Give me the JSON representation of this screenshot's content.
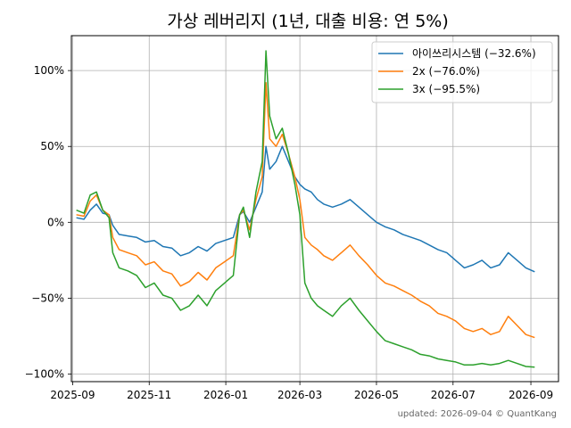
{
  "chart_data": {
    "type": "line",
    "title": "가상 레버리지 (1년, 대출 비용: 연 5%)",
    "footer": "updated: 2026-09-04 © QuantKang",
    "xlabel": "",
    "ylabel": "",
    "xlim": [
      "2025-08-31",
      "2026-09-23"
    ],
    "ylim": [
      -105,
      123
    ],
    "x_ticks": [
      "2025-09",
      "2025-11",
      "2026-01",
      "2026-03",
      "2026-05",
      "2026-07",
      "2026-09"
    ],
    "y_ticks": [
      100,
      50,
      0,
      -50,
      -100
    ],
    "y_tick_labels": [
      "100%",
      "50%",
      "0%",
      "−50%",
      "−100%"
    ],
    "grid": true,
    "legend_position": "top-right",
    "series": [
      {
        "name": "아이쓰리시스템 (−32.6%)",
        "color": "#1f77b4",
        "points": [
          [
            "2025-09-04",
            3
          ],
          [
            "2025-09-10",
            2
          ],
          [
            "2025-09-15",
            8
          ],
          [
            "2025-09-20",
            12
          ],
          [
            "2025-09-25",
            6
          ],
          [
            "2025-09-30",
            5
          ],
          [
            "2025-10-03",
            -2
          ],
          [
            "2025-10-08",
            -8
          ],
          [
            "2025-10-15",
            -9
          ],
          [
            "2025-10-22",
            -10
          ],
          [
            "2025-10-29",
            -13
          ],
          [
            "2025-11-05",
            -12
          ],
          [
            "2025-11-12",
            -16
          ],
          [
            "2025-11-19",
            -17
          ],
          [
            "2025-11-26",
            -22
          ],
          [
            "2025-12-03",
            -20
          ],
          [
            "2025-12-10",
            -16
          ],
          [
            "2025-12-17",
            -19
          ],
          [
            "2025-12-24",
            -14
          ],
          [
            "2025-12-31",
            -12
          ],
          [
            "2026-01-07",
            -10
          ],
          [
            "2026-01-12",
            5
          ],
          [
            "2026-01-15",
            7
          ],
          [
            "2026-01-20",
            0
          ],
          [
            "2026-01-25",
            10
          ],
          [
            "2026-01-30",
            20
          ],
          [
            "2026-02-02",
            50
          ],
          [
            "2026-02-05",
            35
          ],
          [
            "2026-02-10",
            40
          ],
          [
            "2026-02-15",
            50
          ],
          [
            "2026-02-20",
            40
          ],
          [
            "2026-02-25",
            30
          ],
          [
            "2026-03-01",
            25
          ],
          [
            "2026-03-05",
            22
          ],
          [
            "2026-03-10",
            20
          ],
          [
            "2026-03-15",
            15
          ],
          [
            "2026-03-20",
            12
          ],
          [
            "2026-03-27",
            10
          ],
          [
            "2026-04-03",
            12
          ],
          [
            "2026-04-10",
            15
          ],
          [
            "2026-04-17",
            10
          ],
          [
            "2026-04-24",
            5
          ],
          [
            "2026-05-01",
            0
          ],
          [
            "2026-05-08",
            -3
          ],
          [
            "2026-05-15",
            -5
          ],
          [
            "2026-05-22",
            -8
          ],
          [
            "2026-05-29",
            -10
          ],
          [
            "2026-06-05",
            -12
          ],
          [
            "2026-06-12",
            -15
          ],
          [
            "2026-06-19",
            -18
          ],
          [
            "2026-06-26",
            -20
          ],
          [
            "2026-07-03",
            -25
          ],
          [
            "2026-07-10",
            -30
          ],
          [
            "2026-07-17",
            -28
          ],
          [
            "2026-07-24",
            -25
          ],
          [
            "2026-07-31",
            -30
          ],
          [
            "2026-08-07",
            -28
          ],
          [
            "2026-08-14",
            -20
          ],
          [
            "2026-08-21",
            -25
          ],
          [
            "2026-08-28",
            -30
          ],
          [
            "2026-09-04",
            -32.6
          ]
        ]
      },
      {
        "name": "2x (−76.0%)",
        "color": "#ff7f0e",
        "points": [
          [
            "2025-09-04",
            5
          ],
          [
            "2025-09-10",
            4
          ],
          [
            "2025-09-15",
            14
          ],
          [
            "2025-09-20",
            18
          ],
          [
            "2025-09-25",
            8
          ],
          [
            "2025-09-30",
            5
          ],
          [
            "2025-10-03",
            -10
          ],
          [
            "2025-10-08",
            -18
          ],
          [
            "2025-10-15",
            -20
          ],
          [
            "2025-10-22",
            -22
          ],
          [
            "2025-10-29",
            -28
          ],
          [
            "2025-11-05",
            -26
          ],
          [
            "2025-11-12",
            -32
          ],
          [
            "2025-11-19",
            -34
          ],
          [
            "2025-11-26",
            -42
          ],
          [
            "2025-12-03",
            -39
          ],
          [
            "2025-12-10",
            -33
          ],
          [
            "2025-12-17",
            -38
          ],
          [
            "2025-12-24",
            -30
          ],
          [
            "2025-12-31",
            -26
          ],
          [
            "2026-01-07",
            -22
          ],
          [
            "2026-01-12",
            5
          ],
          [
            "2026-01-15",
            8
          ],
          [
            "2026-01-20",
            -5
          ],
          [
            "2026-01-25",
            15
          ],
          [
            "2026-01-30",
            30
          ],
          [
            "2026-02-02",
            92
          ],
          [
            "2026-02-05",
            55
          ],
          [
            "2026-02-10",
            50
          ],
          [
            "2026-02-15",
            58
          ],
          [
            "2026-02-20",
            45
          ],
          [
            "2026-02-25",
            30
          ],
          [
            "2026-03-01",
            15
          ],
          [
            "2026-03-05",
            -10
          ],
          [
            "2026-03-10",
            -15
          ],
          [
            "2026-03-15",
            -18
          ],
          [
            "2026-03-20",
            -22
          ],
          [
            "2026-03-27",
            -25
          ],
          [
            "2026-04-03",
            -20
          ],
          [
            "2026-04-10",
            -15
          ],
          [
            "2026-04-17",
            -22
          ],
          [
            "2026-04-24",
            -28
          ],
          [
            "2026-05-01",
            -35
          ],
          [
            "2026-05-08",
            -40
          ],
          [
            "2026-05-15",
            -42
          ],
          [
            "2026-05-22",
            -45
          ],
          [
            "2026-05-29",
            -48
          ],
          [
            "2026-06-05",
            -52
          ],
          [
            "2026-06-12",
            -55
          ],
          [
            "2026-06-19",
            -60
          ],
          [
            "2026-06-26",
            -62
          ],
          [
            "2026-07-03",
            -65
          ],
          [
            "2026-07-10",
            -70
          ],
          [
            "2026-07-17",
            -72
          ],
          [
            "2026-07-24",
            -70
          ],
          [
            "2026-07-31",
            -74
          ],
          [
            "2026-08-07",
            -72
          ],
          [
            "2026-08-14",
            -62
          ],
          [
            "2026-08-21",
            -68
          ],
          [
            "2026-08-28",
            -74
          ],
          [
            "2026-09-04",
            -76
          ]
        ]
      },
      {
        "name": "3x (−95.5%)",
        "color": "#2ca02c",
        "points": [
          [
            "2025-09-04",
            8
          ],
          [
            "2025-09-10",
            6
          ],
          [
            "2025-09-15",
            18
          ],
          [
            "2025-09-20",
            20
          ],
          [
            "2025-09-25",
            8
          ],
          [
            "2025-09-30",
            3
          ],
          [
            "2025-10-03",
            -20
          ],
          [
            "2025-10-08",
            -30
          ],
          [
            "2025-10-15",
            -32
          ],
          [
            "2025-10-22",
            -35
          ],
          [
            "2025-10-29",
            -43
          ],
          [
            "2025-11-05",
            -40
          ],
          [
            "2025-11-12",
            -48
          ],
          [
            "2025-11-19",
            -50
          ],
          [
            "2025-11-26",
            -58
          ],
          [
            "2025-12-03",
            -55
          ],
          [
            "2025-12-10",
            -48
          ],
          [
            "2025-12-17",
            -55
          ],
          [
            "2025-12-24",
            -45
          ],
          [
            "2025-12-31",
            -40
          ],
          [
            "2026-01-07",
            -35
          ],
          [
            "2026-01-12",
            5
          ],
          [
            "2026-01-15",
            10
          ],
          [
            "2026-01-20",
            -10
          ],
          [
            "2026-01-25",
            20
          ],
          [
            "2026-01-30",
            40
          ],
          [
            "2026-02-02",
            113
          ],
          [
            "2026-02-05",
            70
          ],
          [
            "2026-02-10",
            55
          ],
          [
            "2026-02-15",
            62
          ],
          [
            "2026-02-20",
            45
          ],
          [
            "2026-02-25",
            25
          ],
          [
            "2026-03-01",
            5
          ],
          [
            "2026-03-05",
            -40
          ],
          [
            "2026-03-10",
            -50
          ],
          [
            "2026-03-15",
            -55
          ],
          [
            "2026-03-20",
            -58
          ],
          [
            "2026-03-27",
            -62
          ],
          [
            "2026-04-03",
            -55
          ],
          [
            "2026-04-10",
            -50
          ],
          [
            "2026-04-17",
            -58
          ],
          [
            "2026-04-24",
            -65
          ],
          [
            "2026-05-01",
            -72
          ],
          [
            "2026-05-08",
            -78
          ],
          [
            "2026-05-15",
            -80
          ],
          [
            "2026-05-22",
            -82
          ],
          [
            "2026-05-29",
            -84
          ],
          [
            "2026-06-05",
            -87
          ],
          [
            "2026-06-12",
            -88
          ],
          [
            "2026-06-19",
            -90
          ],
          [
            "2026-06-26",
            -91
          ],
          [
            "2026-07-03",
            -92
          ],
          [
            "2026-07-10",
            -94
          ],
          [
            "2026-07-17",
            -94
          ],
          [
            "2026-07-24",
            -93
          ],
          [
            "2026-07-31",
            -94
          ],
          [
            "2026-08-07",
            -93
          ],
          [
            "2026-08-14",
            -91
          ],
          [
            "2026-08-21",
            -93
          ],
          [
            "2026-08-28",
            -95
          ],
          [
            "2026-09-04",
            -95.5
          ]
        ]
      }
    ]
  }
}
